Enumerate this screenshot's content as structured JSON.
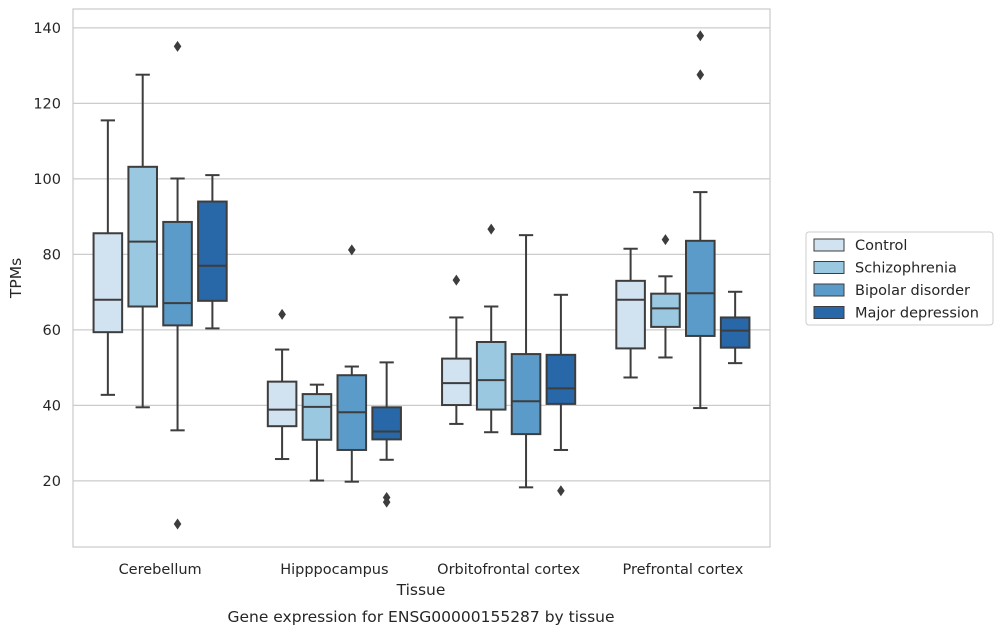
{
  "chart_data": {
    "type": "box",
    "caption": "Gene expression for ENSG00000155287 by tissue",
    "xlabel": "Tissue",
    "ylabel": "TPMs",
    "ylim": [
      2.5,
      145
    ],
    "yticks": [
      20,
      40,
      60,
      80,
      100,
      120,
      140
    ],
    "grid": "horizontal",
    "legend_position": "right",
    "categories": [
      "Cerebellum",
      "Hipppocampus",
      "Orbitofrontal cortex",
      "Prefrontal cortex"
    ],
    "series": [
      {
        "name": "Control",
        "color": "#d1e2f1",
        "boxes": [
          {
            "whislo": 42.8,
            "q1": 59.4,
            "med": 68.0,
            "q3": 85.6,
            "whishi": 115.5,
            "fliers": []
          },
          {
            "whislo": 25.8,
            "q1": 34.5,
            "med": 38.9,
            "q3": 46.3,
            "whishi": 54.8,
            "fliers": [
              64.1
            ]
          },
          {
            "whislo": 35.1,
            "q1": 40.1,
            "med": 45.9,
            "q3": 52.4,
            "whishi": 63.3,
            "fliers": [
              73.2
            ]
          },
          {
            "whislo": 47.4,
            "q1": 55.1,
            "med": 68.0,
            "q3": 73.0,
            "whishi": 81.5,
            "fliers": []
          }
        ]
      },
      {
        "name": "Schizophrenia",
        "color": "#9ac8e0",
        "boxes": [
          {
            "whislo": 39.5,
            "q1": 66.2,
            "med": 83.4,
            "q3": 103.2,
            "whishi": 127.6,
            "fliers": []
          },
          {
            "whislo": 20.1,
            "q1": 30.9,
            "med": 39.6,
            "q3": 43.0,
            "whishi": 45.5,
            "fliers": []
          },
          {
            "whislo": 32.9,
            "q1": 38.9,
            "med": 46.7,
            "q3": 56.8,
            "whishi": 66.2,
            "fliers": [
              86.7
            ]
          },
          {
            "whislo": 52.7,
            "q1": 60.8,
            "med": 65.7,
            "q3": 69.6,
            "whishi": 74.2,
            "fliers": [
              83.9
            ]
          }
        ]
      },
      {
        "name": "Bipolar disorder",
        "color": "#5a9bc9",
        "boxes": [
          {
            "whislo": 33.4,
            "q1": 61.2,
            "med": 67.1,
            "q3": 88.6,
            "whishi": 100.1,
            "fliers": [
              135.1,
              8.6
            ]
          },
          {
            "whislo": 19.8,
            "q1": 28.2,
            "med": 38.2,
            "q3": 48.0,
            "whishi": 50.3,
            "fliers": [
              81.2
            ]
          },
          {
            "whislo": 18.3,
            "q1": 32.4,
            "med": 41.1,
            "q3": 53.6,
            "whishi": 85.1,
            "fliers": []
          },
          {
            "whislo": 39.3,
            "q1": 58.4,
            "med": 69.7,
            "q3": 83.6,
            "whishi": 96.5,
            "fliers": [
              127.6,
              137.9
            ]
          }
        ]
      },
      {
        "name": "Major depression",
        "color": "#2867a8",
        "boxes": [
          {
            "whislo": 60.4,
            "q1": 67.7,
            "med": 77.0,
            "q3": 94.0,
            "whishi": 101.0,
            "fliers": []
          },
          {
            "whislo": 25.6,
            "q1": 31.0,
            "med": 33.1,
            "q3": 39.5,
            "whishi": 51.4,
            "fliers": [
              14.4,
              15.6
            ]
          },
          {
            "whislo": 28.2,
            "q1": 40.4,
            "med": 44.5,
            "q3": 53.4,
            "whishi": 69.3,
            "fliers": [
              17.4
            ]
          },
          {
            "whislo": 51.2,
            "q1": 55.3,
            "med": 59.8,
            "q3": 63.3,
            "whishi": 70.1,
            "fliers": []
          }
        ]
      }
    ]
  }
}
